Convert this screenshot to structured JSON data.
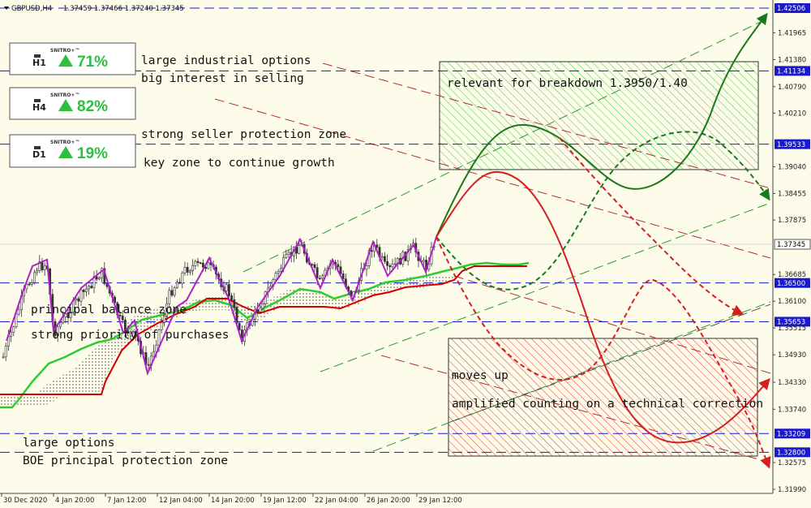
{
  "header": {
    "symbol": "GBPUSD,H4",
    "ohlc": "1.37459 1.37466 1.37240 1.37345"
  },
  "colors": {
    "background": "#fdfbea",
    "candle": "#333333",
    "zigzag": "#b020c8",
    "kumo_green": "#2ecc2e",
    "kumo_red": "#d00000",
    "bull_path": "#1a7a1a",
    "bear_path": "#d42020",
    "level_line": "#1a1acc",
    "price_tag": "#1a1acc"
  },
  "indicator_boxes": [
    {
      "timeframe": "H1",
      "brand": "SNITRO+™",
      "percent": "71%"
    },
    {
      "timeframe": "H4",
      "brand": "SNITRO+™",
      "percent": "82%"
    },
    {
      "timeframe": "D1",
      "brand": "SNITRO+™",
      "percent": "19%"
    }
  ],
  "annotations": [
    {
      "key": "a1",
      "text": "large industrial options"
    },
    {
      "key": "a2",
      "text": "big interest in selling"
    },
    {
      "key": "a3",
      "text": "strong seller protection zone"
    },
    {
      "key": "a4",
      "text": "key zone to continue growth"
    },
    {
      "key": "a5",
      "text": "principal balance zone"
    },
    {
      "key": "a6",
      "text": "strong priority of purchases"
    },
    {
      "key": "a7",
      "text": "relevant for breakdown 1.3950/1.40"
    },
    {
      "key": "a8",
      "text": "moves up"
    },
    {
      "key": "a9",
      "text": "amplified counting on a technical correction"
    },
    {
      "key": "a10",
      "text": "large options"
    },
    {
      "key": "a11",
      "text": "BOE principal protection zone"
    }
  ],
  "chart_data": {
    "type": "candlestick",
    "symbol": "GBPUSD",
    "timeframe": "H4",
    "ylim": [
      1.3199,
      1.4265
    ],
    "price_axis_ticks": [
      "1.41965",
      "1.41380",
      "1.40790",
      "1.40210",
      "1.39040",
      "1.38455",
      "1.37875",
      "1.36685",
      "1.36100",
      "1.35515",
      "1.34930",
      "1.34330",
      "1.33740",
      "1.32575",
      "1.31990"
    ],
    "time_axis_ticks": [
      "30 Dec 2020",
      "4 Jan 20:00",
      "7 Jan 12:00",
      "12 Jan 04:00",
      "14 Jan 20:00",
      "19 Jan 12:00",
      "22 Jan 04:00",
      "26 Jan 20:00",
      "29 Jan 12:00"
    ],
    "levels": [
      {
        "price": 1.42506,
        "label": "1.42506"
      },
      {
        "price": 1.41134,
        "label": "1.41134"
      },
      {
        "price": 1.39533,
        "label": "1.39533"
      },
      {
        "price": 1.37345,
        "label": "1.37345",
        "current": true
      },
      {
        "price": 1.365,
        "label": "1.36500"
      },
      {
        "price": 1.35653,
        "label": "1.35653"
      },
      {
        "price": 1.33209,
        "label": "1.33209"
      },
      {
        "price": 1.328,
        "label": "1.32800"
      }
    ],
    "zones": [
      {
        "name": "resistance-zone",
        "color": "#2ecc2e",
        "top": 1.414,
        "bottom": 1.3913
      },
      {
        "name": "support-zone",
        "color": "#e03030",
        "top": 1.3517,
        "bottom": 1.3275
      }
    ]
  }
}
